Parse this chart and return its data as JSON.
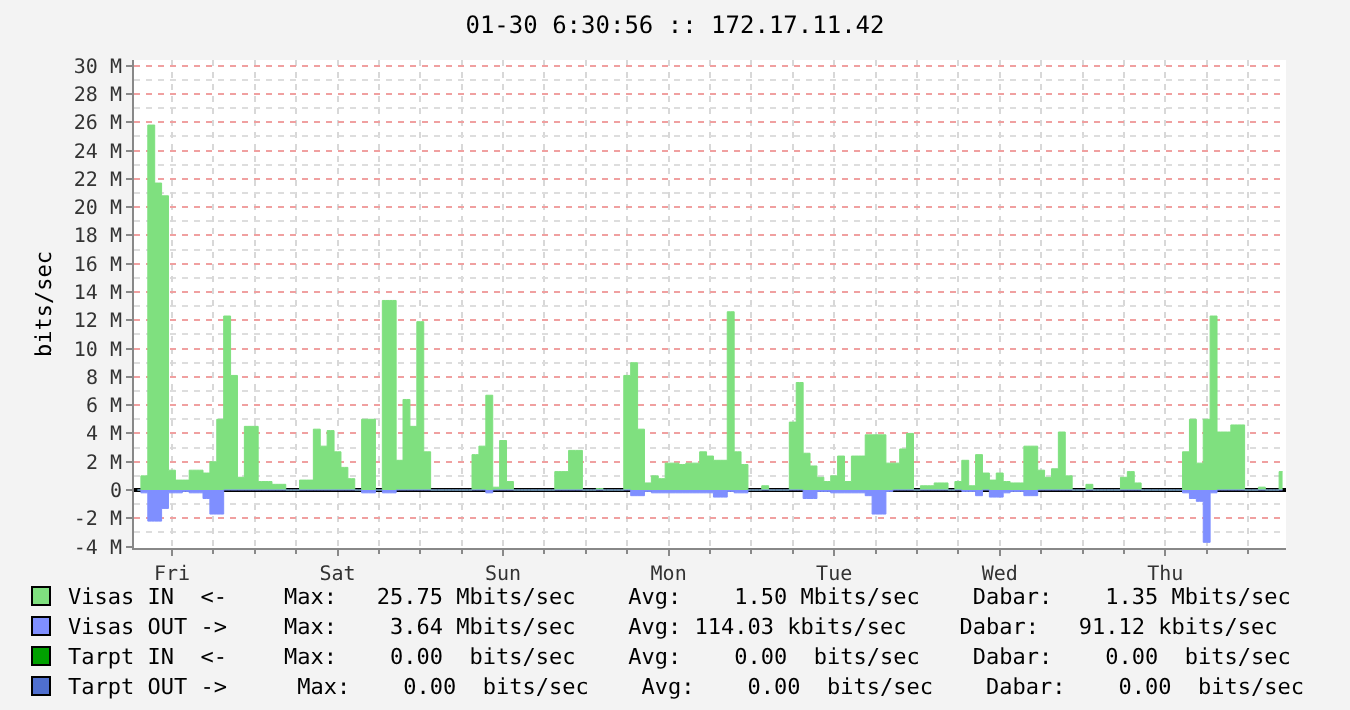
{
  "chart_data": {
    "type": "area",
    "title": "01-30 6:30:56 :: 172.17.11.42",
    "ylabel": "bits/sec",
    "categories": [
      null,
      null,
      null,
      null,
      null,
      "Fri",
      null,
      null,
      null,
      null,
      null,
      null,
      null,
      null,
      null,
      null,
      null,
      null,
      null,
      null,
      null,
      null,
      null,
      null,
      null,
      null,
      null,
      null,
      null,
      "Sat",
      null,
      null,
      null,
      null,
      null,
      null,
      null,
      null,
      null,
      null,
      null,
      null,
      null,
      null,
      null,
      null,
      null,
      null,
      null,
      null,
      null,
      null,
      null,
      "Sun",
      null,
      null,
      null,
      null,
      null,
      null,
      null,
      null,
      null,
      null,
      null,
      null,
      null,
      null,
      null,
      null,
      null,
      null,
      null,
      null,
      null,
      null,
      null,
      "Mon",
      null,
      null,
      null,
      null,
      null,
      null,
      null,
      null,
      null,
      null,
      null,
      null,
      null,
      null,
      null,
      null,
      null,
      null,
      null,
      null,
      null,
      null,
      null,
      "Tue",
      null,
      null,
      null,
      null,
      null,
      null,
      null,
      null,
      null,
      null,
      null,
      null,
      null,
      null,
      null,
      null,
      null,
      null,
      null,
      null,
      null,
      null,
      null,
      "Wed",
      null,
      null,
      null,
      null,
      null,
      null,
      null,
      null,
      null,
      null,
      null,
      null,
      null,
      null,
      null,
      null,
      null,
      null,
      null,
      null,
      null,
      null,
      null,
      "Thu",
      null,
      null,
      null,
      null,
      null,
      null,
      null,
      null,
      null,
      null,
      null,
      null,
      null,
      null,
      null,
      null,
      null
    ],
    "ylim": [
      -4.1,
      30.4
    ],
    "yticks": [
      {
        "value": -4,
        "label": "-4 M"
      },
      {
        "value": -2,
        "label": "-2 M"
      },
      0,
      {
        "value": 2,
        "label": "2 M"
      },
      {
        "value": 4,
        "label": "4 M"
      },
      {
        "value": 6,
        "label": "6 M"
      },
      {
        "value": 8,
        "label": "8 M"
      },
      {
        "value": 10,
        "label": "10 M"
      },
      {
        "value": 12,
        "label": "12 M"
      },
      {
        "value": 14,
        "label": "14 M"
      },
      {
        "value": 16,
        "label": "16 M"
      },
      {
        "value": 18,
        "label": "18 M"
      },
      {
        "value": 20,
        "label": "20 M"
      },
      {
        "value": 22,
        "label": "22 M"
      },
      {
        "value": 24,
        "label": "24 M"
      },
      {
        "value": 26,
        "label": "26 M"
      },
      {
        "value": 28,
        "label": "28 M"
      },
      {
        "value": 30,
        "label": "30 M"
      }
    ],
    "grid": true,
    "legend": "bottom",
    "series": [
      {
        "name": "Visas IN  <-",
        "color": "#7fe07f",
        "values": [
          0,
          1.0,
          25.8,
          21.7,
          20.8,
          1.4,
          0.7,
          0.7,
          1.4,
          1.4,
          1.2,
          2.0,
          5.0,
          12.3,
          8.1,
          0.9,
          4.5,
          4.5,
          0.6,
          0.6,
          0.4,
          0.4,
          0,
          0,
          0.7,
          0.7,
          4.3,
          3.1,
          4.2,
          2.7,
          1.6,
          0.8,
          0,
          5.0,
          5.0,
          0,
          13.4,
          13.4,
          2.1,
          6.4,
          4.5,
          11.9,
          2.7,
          0,
          0,
          0,
          0,
          0,
          0,
          2.5,
          3.1,
          6.7,
          0.2,
          3.5,
          0.6,
          0,
          0,
          0,
          0,
          0,
          0,
          1.3,
          1.3,
          2.8,
          2.8,
          0,
          0,
          0.1,
          0,
          0,
          0,
          8.1,
          9.0,
          4.3,
          0.5,
          1.0,
          0.8,
          1.9,
          1.9,
          1.8,
          1.9,
          1.9,
          2.7,
          2.4,
          2.1,
          2.1,
          12.6,
          2.7,
          1.8,
          0,
          0,
          0.3,
          0,
          0,
          0,
          4.8,
          7.6,
          2.6,
          1.7,
          0.9,
          0.6,
          1.0,
          2.4,
          0.6,
          2.4,
          2.4,
          3.9,
          3.9,
          3.9,
          1.9,
          1.9,
          2.9,
          4.0,
          0,
          0.3,
          0.3,
          0.5,
          0.5,
          0,
          0.6,
          2.1,
          0.3,
          2.5,
          1.2,
          0.7,
          1.2,
          0.6,
          0.5,
          0.5,
          3.1,
          3.1,
          1.4,
          0.9,
          1.5,
          4.1,
          1.0,
          0,
          0,
          0.4,
          0,
          0,
          0,
          0,
          0.9,
          1.3,
          0.5,
          0,
          0,
          0,
          0,
          0,
          0,
          2.7,
          5.0,
          1.9,
          5.0,
          12.3,
          4.1,
          4.1,
          4.6,
          4.6,
          0,
          0,
          0.2,
          0,
          0,
          1.3
        ]
      },
      {
        "name": "Visas OUT ->",
        "color": "#7f8fff",
        "values": [
          0,
          -0.2,
          -2.2,
          -2.2,
          -1.3,
          -0.2,
          -0.2,
          -0.1,
          -0.2,
          -0.2,
          -0.6,
          -1.7,
          -1.7,
          0,
          0,
          0,
          0,
          0,
          0,
          0,
          0,
          0,
          0,
          0,
          0,
          0,
          0,
          0,
          0,
          0,
          0,
          0,
          0,
          -0.2,
          -0.2,
          0,
          -0.2,
          -0.2,
          0,
          0,
          0,
          0,
          0,
          0,
          0,
          0,
          0,
          0,
          0,
          0,
          0,
          -0.2,
          0,
          0,
          0,
          0,
          0,
          0,
          0,
          0,
          0,
          0,
          0,
          0,
          0,
          0,
          0,
          0,
          0,
          0,
          0,
          0,
          -0.4,
          -0.4,
          -0.1,
          -0.2,
          -0.2,
          -0.2,
          -0.2,
          -0.2,
          -0.2,
          -0.2,
          -0.2,
          -0.2,
          -0.5,
          -0.5,
          -0.1,
          -0.2,
          -0.2,
          0,
          0,
          0,
          0,
          0,
          0,
          0,
          0,
          -0.6,
          -0.6,
          -0.1,
          -0.1,
          -0.2,
          -0.2,
          -0.2,
          -0.2,
          -0.2,
          -0.4,
          -1.7,
          -1.7,
          -0.1,
          0,
          0,
          0,
          0,
          0,
          0,
          0,
          0,
          0,
          0,
          -0.1,
          -0.1,
          -0.4,
          0,
          -0.5,
          -0.5,
          -0.2,
          -0.1,
          -0.1,
          -0.4,
          -0.4,
          0,
          0,
          0,
          0,
          0,
          0,
          0,
          0,
          0,
          0,
          0,
          0,
          0,
          0,
          0,
          0,
          0,
          0,
          0,
          0,
          0,
          -0.2,
          -0.6,
          -0.8,
          -3.7,
          -0.2,
          0,
          0,
          0,
          0,
          0,
          0,
          0,
          0,
          0,
          0
        ]
      },
      {
        "name": "Tarpt IN  <-",
        "color": "#00a000",
        "values": [
          null,
          null,
          null,
          null,
          null,
          null,
          null,
          null,
          null,
          null,
          null,
          null,
          null,
          null,
          null,
          null,
          null,
          null,
          null,
          null,
          null,
          null,
          null,
          null,
          null,
          null,
          null,
          null,
          null,
          null,
          null,
          null,
          null,
          null,
          null,
          null,
          null,
          null,
          null,
          null,
          null,
          null,
          null,
          null,
          null,
          null,
          null,
          null,
          null,
          null,
          null,
          null,
          null,
          null,
          null,
          null,
          null,
          null,
          null,
          null,
          null,
          null,
          null,
          null,
          null,
          null,
          null,
          null,
          null,
          null,
          null,
          null,
          null,
          null,
          null,
          null,
          null,
          null,
          null,
          null,
          null,
          null,
          null,
          null,
          null,
          null,
          null,
          null,
          null,
          null,
          null,
          null,
          null,
          null,
          null,
          null,
          null,
          null,
          null,
          null,
          null,
          null,
          null,
          null,
          null,
          null,
          null,
          null,
          null,
          null,
          null,
          null,
          null,
          null,
          null,
          null,
          null,
          null,
          null,
          null,
          null,
          null,
          null,
          null,
          null,
          null,
          null,
          null,
          null,
          null,
          null,
          null,
          null,
          null,
          null,
          null,
          null,
          null,
          null,
          null,
          null,
          null,
          null,
          null,
          null,
          null,
          null,
          null,
          null,
          null,
          null,
          null,
          null,
          null,
          null,
          null,
          null,
          null,
          null,
          null,
          null,
          null,
          null,
          null,
          null,
          null,
          null
        ]
      },
      {
        "name": "Tarpt OUT ->",
        "color": "#4f6fcf",
        "values": [
          null,
          null,
          null,
          null,
          null,
          null,
          null,
          null,
          null,
          null,
          null,
          null,
          null,
          null,
          null,
          null,
          null,
          null,
          null,
          null,
          null,
          null,
          null,
          null,
          null,
          null,
          null,
          null,
          null,
          null,
          null,
          null,
          null,
          null,
          null,
          null,
          null,
          null,
          null,
          null,
          null,
          null,
          null,
          null,
          null,
          null,
          null,
          null,
          null,
          null,
          null,
          null,
          null,
          null,
          null,
          null,
          null,
          null,
          null,
          null,
          null,
          null,
          null,
          null,
          null,
          null,
          null,
          null,
          null,
          null,
          null,
          null,
          null,
          null,
          null,
          null,
          null,
          null,
          null,
          null,
          null,
          null,
          null,
          null,
          null,
          null,
          null,
          null,
          null,
          null,
          null,
          null,
          null,
          null,
          null,
          null,
          null,
          null,
          null,
          null,
          null,
          null,
          null,
          null,
          null,
          null,
          null,
          null,
          null,
          null,
          null,
          null,
          null,
          null,
          null,
          null,
          null,
          null,
          null,
          null,
          null,
          null,
          null,
          null,
          null,
          null,
          null,
          null,
          null,
          null,
          null,
          null,
          null,
          null,
          null,
          null,
          null,
          null,
          null,
          null,
          null,
          null,
          null,
          null,
          null,
          null,
          null,
          null,
          null,
          null,
          null,
          null,
          null,
          null,
          null,
          null,
          null,
          null,
          null,
          null,
          null,
          null,
          null,
          null,
          null,
          null,
          null
        ]
      }
    ],
    "annotations": [
      "Max:   25.75 Mbits/sec    Avg:    1.50 Mbits/sec    Dabar:    1.35 Mbits/sec",
      "Max:    3.64 Mbits/sec    Avg: 114.03 kbits/sec    Dabar:   91.12 kbits/sec",
      "Max:    0.00  bits/sec    Avg:    0.00  bits/sec    Dabar:    0.00  bits/sec",
      " Max:    0.00  bits/sec    Avg:    0.00  bits/sec    Dabar:    0.00  bits/sec"
    ]
  }
}
